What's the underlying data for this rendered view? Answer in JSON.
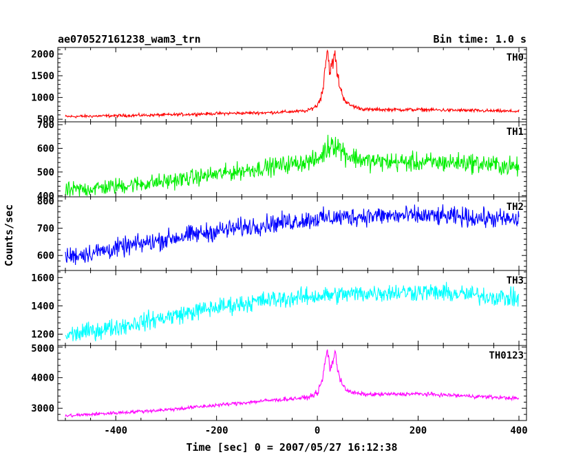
{
  "chart_data": {
    "type": "line",
    "title": "ae070527161238_wam3_trn",
    "subtitle": "Bin time: 1.0 s",
    "xlabel": "Time [sec] 0 = 2007/05/27 16:12:38",
    "ylabel": "Counts/sec",
    "xlim": [
      -515,
      415
    ],
    "xticks": [
      -400,
      -200,
      0,
      200,
      400
    ],
    "grid": false,
    "panels": [
      {
        "name": "TH0",
        "color": "#ff0000",
        "ylim": [
          440,
          2150
        ],
        "yticks": [
          500,
          1000,
          1500,
          2000
        ],
        "x": [
          -500,
          -400,
          -300,
          -200,
          -100,
          -20,
          0,
          10,
          15,
          20,
          25,
          30,
          35,
          40,
          45,
          50,
          60,
          80,
          100,
          200,
          300,
          400
        ],
        "y": [
          560,
          580,
          600,
          630,
          650,
          690,
          820,
          1100,
          1700,
          2100,
          1600,
          1750,
          2000,
          1500,
          1250,
          1050,
          850,
          760,
          720,
          720,
          700,
          680
        ],
        "noise": [
          30,
          30,
          30,
          30,
          30,
          30,
          50,
          100,
          150,
          150,
          150,
          150,
          150,
          150,
          100,
          80,
          50,
          35,
          35,
          35,
          35,
          30
        ]
      },
      {
        "name": "TH1",
        "color": "#00ee00",
        "ylim": [
          395,
          712
        ],
        "yticks": [
          400,
          500,
          600,
          700
        ],
        "x": [
          -500,
          -400,
          -300,
          -200,
          -100,
          0,
          20,
          30,
          40,
          60,
          100,
          200,
          300,
          400
        ],
        "y": [
          420,
          440,
          460,
          490,
          520,
          550,
          600,
          630,
          610,
          570,
          545,
          540,
          540,
          520
        ],
        "noise": [
          30,
          30,
          30,
          30,
          32,
          32,
          45,
          50,
          45,
          40,
          35,
          35,
          35,
          35
        ]
      },
      {
        "name": "TH2",
        "color": "#0000ff",
        "ylim": [
          545,
          815
        ],
        "yticks": [
          600,
          700,
          800
        ],
        "x": [
          -500,
          -400,
          -300,
          -200,
          -100,
          0,
          100,
          200,
          300,
          400
        ],
        "y": [
          595,
          625,
          660,
          690,
          715,
          735,
          745,
          745,
          740,
          730
        ],
        "noise": [
          30,
          30,
          30,
          30,
          30,
          30,
          30,
          30,
          30,
          30
        ]
      },
      {
        "name": "TH3",
        "color": "#00ffff",
        "ylim": [
          1120,
          1650
        ],
        "yticks": [
          1200,
          1400,
          1600
        ],
        "x": [
          -500,
          -400,
          -300,
          -200,
          -100,
          0,
          100,
          200,
          300,
          400
        ],
        "y": [
          1190,
          1250,
          1320,
          1390,
          1440,
          1470,
          1490,
          1500,
          1480,
          1450
        ],
        "noise": [
          55,
          55,
          55,
          55,
          55,
          55,
          55,
          55,
          55,
          55
        ]
      },
      {
        "name": "TH0123",
        "color": "#ff00ff",
        "ylim": [
          2600,
          5050
        ],
        "yticks": [
          3000,
          4000,
          5000
        ],
        "x": [
          -500,
          -400,
          -300,
          -200,
          -100,
          -20,
          0,
          10,
          15,
          20,
          25,
          30,
          35,
          40,
          45,
          50,
          60,
          80,
          100,
          200,
          300,
          400
        ],
        "y": [
          2750,
          2850,
          2950,
          3100,
          3250,
          3350,
          3500,
          3900,
          4500,
          4900,
          4300,
          4500,
          4800,
          4300,
          4000,
          3800,
          3550,
          3480,
          3450,
          3470,
          3400,
          3320
        ],
        "noise": [
          50,
          50,
          50,
          55,
          55,
          60,
          80,
          120,
          150,
          150,
          150,
          150,
          150,
          150,
          120,
          100,
          70,
          55,
          55,
          55,
          55,
          50
        ]
      }
    ]
  }
}
